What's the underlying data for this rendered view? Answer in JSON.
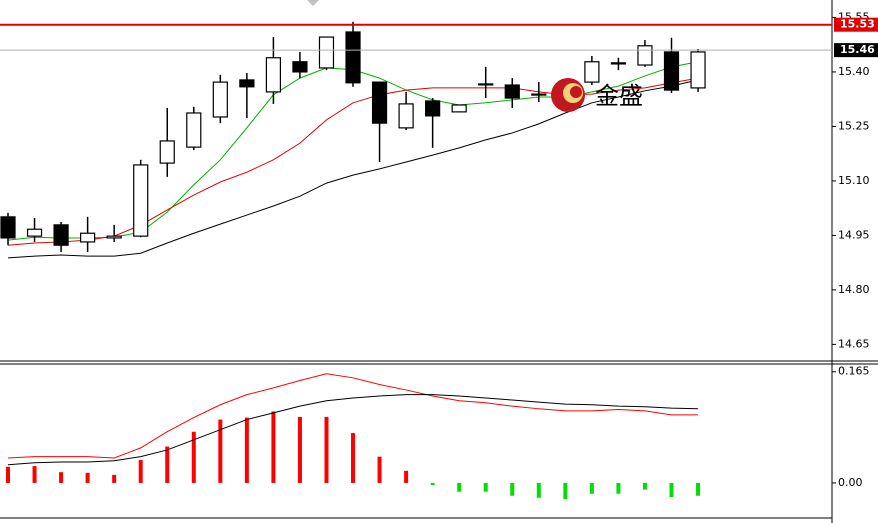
{
  "chart_data": [
    {
      "type": "candlestick",
      "open": [
        15.001,
        14.948,
        14.979,
        14.932,
        14.943,
        14.948,
        15.149,
        15.193,
        15.276,
        15.378,
        15.345,
        15.428,
        15.411,
        15.51,
        15.372,
        15.246,
        15.32,
        15.29,
        15.366,
        15.364,
        15.337,
        15.301,
        15.372,
        15.422,
        15.419,
        15.455,
        15.356
      ],
      "high": [
        15.012,
        14.998,
        14.987,
        15.001,
        14.979,
        15.158,
        15.301,
        15.304,
        15.392,
        15.397,
        15.496,
        15.455,
        15.496,
        15.538,
        15.372,
        15.345,
        15.328,
        15.309,
        15.414,
        15.383,
        15.372,
        15.378,
        15.444,
        15.439,
        15.488,
        15.494,
        15.463
      ],
      "low": [
        14.923,
        14.932,
        14.904,
        14.904,
        14.932,
        14.945,
        15.111,
        15.185,
        15.259,
        15.273,
        15.312,
        15.383,
        15.405,
        15.359,
        15.152,
        15.24,
        15.191,
        15.29,
        15.328,
        15.301,
        15.317,
        15.292,
        15.364,
        15.405,
        15.414,
        15.342,
        15.345
      ],
      "close": [
        14.943,
        14.967,
        14.923,
        14.956,
        14.948,
        15.144,
        15.21,
        15.287,
        15.372,
        15.359,
        15.439,
        15.4,
        15.496,
        15.37,
        15.259,
        15.312,
        15.279,
        15.309,
        15.367,
        15.328,
        15.339,
        15.356,
        15.428,
        15.425,
        15.472,
        15.35,
        15.455
      ],
      "up_color": "#ffffff",
      "down_color": "#000000",
      "lines": [
        {
          "color": "#00b000",
          "values": [
            14.937,
            14.945,
            14.943,
            14.943,
            14.945,
            14.959,
            15.014,
            15.089,
            15.158,
            15.246,
            15.337,
            15.383,
            15.411,
            15.406,
            15.383,
            15.35,
            15.323,
            15.309,
            15.315,
            15.323,
            15.331,
            15.331,
            15.345,
            15.361,
            15.389,
            15.414,
            15.428
          ]
        },
        {
          "color": "#e00000",
          "values": [
            14.923,
            14.929,
            14.932,
            14.937,
            14.948,
            14.978,
            15.02,
            15.061,
            15.097,
            15.124,
            15.158,
            15.204,
            15.268,
            15.315,
            15.337,
            15.35,
            15.356,
            15.356,
            15.356,
            15.356,
            15.345,
            15.337,
            15.339,
            15.35,
            15.356,
            15.37,
            15.383
          ]
        },
        {
          "color": "#000000",
          "values": [
            14.888,
            14.893,
            14.896,
            14.893,
            14.893,
            14.901,
            14.929,
            14.956,
            14.981,
            15.006,
            15.031,
            15.058,
            15.094,
            15.116,
            15.133,
            15.152,
            15.171,
            15.191,
            15.213,
            15.232,
            15.257,
            15.287,
            15.315,
            15.331,
            15.348,
            15.361,
            15.378
          ]
        }
      ],
      "price_lines": [
        {
          "value": 15.53,
          "color": "#e00000"
        },
        {
          "value": 15.46,
          "color": "#b0b0b0"
        }
      ],
      "ylim": [
        14.607,
        15.598
      ],
      "yticks": [
        14.65,
        {
          "value": 14.8,
          "label": "14.80"
        },
        14.95,
        {
          "value": 15.1,
          "label": "15.10"
        },
        15.25,
        {
          "value": 15.4,
          "label": "15.40"
        },
        15.55
      ],
      "watermark": "金盛"
    },
    {
      "type": "macd",
      "histogram": {
        "up_color": "#ff0000",
        "down_color": "#00e000",
        "values": [
          0.024,
          0.025,
          0.016,
          0.015,
          0.012,
          0.034,
          0.054,
          0.076,
          0.094,
          0.097,
          0.106,
          0.098,
          0.098,
          0.074,
          0.039,
          0.018,
          -0.003,
          -0.013,
          -0.013,
          -0.019,
          -0.022,
          -0.024,
          -0.016,
          -0.016,
          -0.01,
          -0.021,
          -0.019
        ]
      },
      "lines": [
        {
          "color": "#ff0000",
          "values": [
            0.037,
            0.039,
            0.039,
            0.039,
            0.037,
            0.052,
            0.076,
            0.097,
            0.116,
            0.131,
            0.141,
            0.152,
            0.162,
            0.156,
            0.146,
            0.138,
            0.129,
            0.122,
            0.119,
            0.114,
            0.11,
            0.107,
            0.107,
            0.109,
            0.107,
            0.101,
            0.101
          ]
        },
        {
          "color": "#000000",
          "values": [
            0.027,
            0.03,
            0.031,
            0.031,
            0.033,
            0.039,
            0.049,
            0.064,
            0.079,
            0.094,
            0.104,
            0.114,
            0.122,
            0.126,
            0.129,
            0.131,
            0.131,
            0.129,
            0.126,
            0.123,
            0.12,
            0.117,
            0.116,
            0.114,
            0.113,
            0.111,
            0.11
          ]
        }
      ],
      "ylim": [
        -0.052,
        0.175
      ],
      "yticks": [
        0.165,
        {
          "value": 0,
          "label": "0.00"
        }
      ]
    }
  ]
}
